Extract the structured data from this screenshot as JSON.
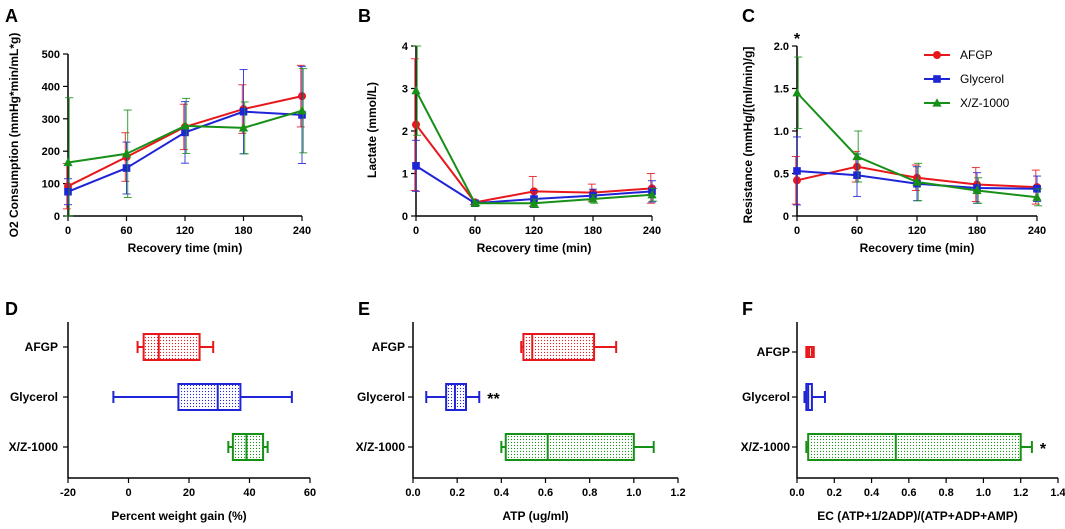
{
  "colors": {
    "AFGP": "#e8171c",
    "Glycerol": "#1f24d6",
    "X/Z-1000": "#179017"
  },
  "legend": [
    "AFGP",
    "Glycerol",
    "X/Z-1000"
  ],
  "chart_data": [
    {
      "panel": "A",
      "type": "line",
      "xlabel": "Recovery time (min)",
      "ylabel": "O2 Consumption (mmHg*min/mL*g)",
      "x": [
        0,
        60,
        120,
        180,
        240
      ],
      "xticks": [
        "0",
        "60",
        "120",
        "180",
        "240"
      ],
      "xlim": [
        0,
        240
      ],
      "ylim": [
        0,
        500
      ],
      "yticks": [
        "0",
        "100",
        "200",
        "300",
        "400",
        "500"
      ],
      "series": [
        {
          "name": "AFGP",
          "values": [
            92,
            182,
            275,
            330,
            370
          ],
          "err": [
            70,
            75,
            70,
            75,
            95
          ],
          "marker": "circle"
        },
        {
          "name": "Glycerol",
          "values": [
            75,
            148,
            258,
            322,
            312
          ],
          "err": [
            40,
            80,
            95,
            130,
            150
          ],
          "marker": "square"
        },
        {
          "name": "X/Z-1000",
          "values": [
            165,
            192,
            278,
            272,
            325
          ],
          "err": [
            200,
            135,
            85,
            80,
            130
          ],
          "marker": "triangle"
        }
      ],
      "annotations": []
    },
    {
      "panel": "B",
      "type": "line",
      "xlabel": "Recovery time (min)",
      "ylabel": "Lactate (mmol/L)",
      "x": [
        0,
        60,
        120,
        180,
        240
      ],
      "xticks": [
        "0",
        "60",
        "120",
        "180",
        "240"
      ],
      "xlim": [
        0,
        240
      ],
      "ylim": [
        0,
        4
      ],
      "yticks": [
        "0",
        "1",
        "2",
        "3",
        "4"
      ],
      "series": [
        {
          "name": "AFGP",
          "values": [
            2.15,
            0.32,
            0.58,
            0.55,
            0.65
          ],
          "err": [
            1.55,
            0.05,
            0.35,
            0.2,
            0.35
          ],
          "marker": "circle"
        },
        {
          "name": "Glycerol",
          "values": [
            1.18,
            0.3,
            0.4,
            0.48,
            0.58
          ],
          "err": [
            0.6,
            0.05,
            0.2,
            0.15,
            0.25
          ],
          "marker": "square"
        },
        {
          "name": "X/Z-1000",
          "values": [
            2.95,
            0.3,
            0.3,
            0.4,
            0.5
          ],
          "err": [
            1.05,
            0.05,
            0.1,
            0.1,
            0.15
          ],
          "marker": "triangle"
        }
      ],
      "annotations": []
    },
    {
      "panel": "C",
      "type": "line",
      "xlabel": "Recovery time (min)",
      "ylabel": "Resistance (mmHg/[(ml/min)/g]",
      "x": [
        0,
        60,
        120,
        180,
        240
      ],
      "xticks": [
        "0",
        "60",
        "120",
        "180",
        "240"
      ],
      "xlim": [
        0,
        240
      ],
      "ylim": [
        0,
        2.0
      ],
      "yticks": [
        "0",
        "0.5",
        "1.0",
        "1.5",
        "2.0"
      ],
      "series": [
        {
          "name": "AFGP",
          "values": [
            0.42,
            0.58,
            0.45,
            0.37,
            0.34
          ],
          "err": [
            0.28,
            0.18,
            0.15,
            0.2,
            0.2
          ],
          "marker": "circle"
        },
        {
          "name": "Glycerol",
          "values": [
            0.53,
            0.48,
            0.38,
            0.33,
            0.32
          ],
          "err": [
            0.4,
            0.25,
            0.2,
            0.18,
            0.15
          ],
          "marker": "square"
        },
        {
          "name": "X/Z-1000",
          "values": [
            1.45,
            0.7,
            0.4,
            0.3,
            0.22
          ],
          "err": [
            0.42,
            0.3,
            0.22,
            0.15,
            0.1
          ],
          "marker": "triangle"
        }
      ],
      "annotations": [
        {
          "text": "*",
          "at_x": 0
        }
      ]
    },
    {
      "panel": "D",
      "type": "box",
      "xlabel": "Percent weight gain (%)",
      "xlim": [
        -20,
        60
      ],
      "xticks": [
        "-20",
        "0",
        "20",
        "40",
        "60"
      ],
      "tick_values": [
        -20,
        0,
        20,
        40,
        60
      ],
      "categories": [
        "AFGP",
        "Glycerol",
        "X/Z-1000"
      ],
      "boxes": [
        {
          "name": "AFGP",
          "min": 3,
          "q1": 5,
          "median": 10,
          "q3": 23.5,
          "max": 28,
          "sig": ""
        },
        {
          "name": "Glycerol",
          "min": -5,
          "q1": 16.5,
          "median": 29.5,
          "q3": 37,
          "max": 54,
          "sig": ""
        },
        {
          "name": "X/Z-1000",
          "min": 33,
          "q1": 34.5,
          "median": 39,
          "q3": 44.5,
          "max": 46,
          "sig": ""
        }
      ]
    },
    {
      "panel": "E",
      "type": "box",
      "xlabel": "ATP (ug/ml)",
      "xlim": [
        0,
        1.2
      ],
      "xticks": [
        "0.0",
        "0.2",
        "0.4",
        "0.6",
        "0.8",
        "1.0",
        "1.2"
      ],
      "tick_values": [
        0,
        0.2,
        0.4,
        0.6,
        0.8,
        1.0,
        1.2
      ],
      "categories": [
        "AFGP",
        "Glycerol",
        "X/Z-1000"
      ],
      "boxes": [
        {
          "name": "AFGP",
          "min": 0.49,
          "q1": 0.5,
          "median": 0.54,
          "q3": 0.82,
          "max": 0.92,
          "sig": ""
        },
        {
          "name": "Glycerol",
          "min": 0.06,
          "q1": 0.15,
          "median": 0.19,
          "q3": 0.24,
          "max": 0.3,
          "sig": "**"
        },
        {
          "name": "X/Z-1000",
          "min": 0.4,
          "q1": 0.42,
          "median": 0.61,
          "q3": 1.0,
          "max": 1.09,
          "sig": ""
        }
      ]
    },
    {
      "panel": "F",
      "type": "box",
      "xlabel": "EC (ATP+1/2ADP)/(ATP+ADP+AMP)",
      "xlim": [
        0,
        1.4
      ],
      "xticks": [
        "0.0",
        "0.2",
        "0.4",
        "0.6",
        "0.8",
        "1.0",
        "1.2",
        "1.4"
      ],
      "tick_values": [
        0,
        0.2,
        0.4,
        0.6,
        0.8,
        1.0,
        1.2,
        1.4
      ],
      "categories": [
        "AFGP",
        "Glycerol",
        "X/Z-1000"
      ],
      "boxes": [
        {
          "name": "AFGP",
          "min": 0.05,
          "q1": 0.055,
          "median": 0.065,
          "q3": 0.08,
          "max": 0.09,
          "sig": ""
        },
        {
          "name": "Glycerol",
          "min": 0.04,
          "q1": 0.05,
          "median": 0.06,
          "q3": 0.08,
          "max": 0.15,
          "sig": ""
        },
        {
          "name": "X/Z-1000",
          "min": 0.05,
          "q1": 0.06,
          "median": 0.53,
          "q3": 1.2,
          "max": 1.26,
          "sig": "*"
        }
      ]
    }
  ]
}
